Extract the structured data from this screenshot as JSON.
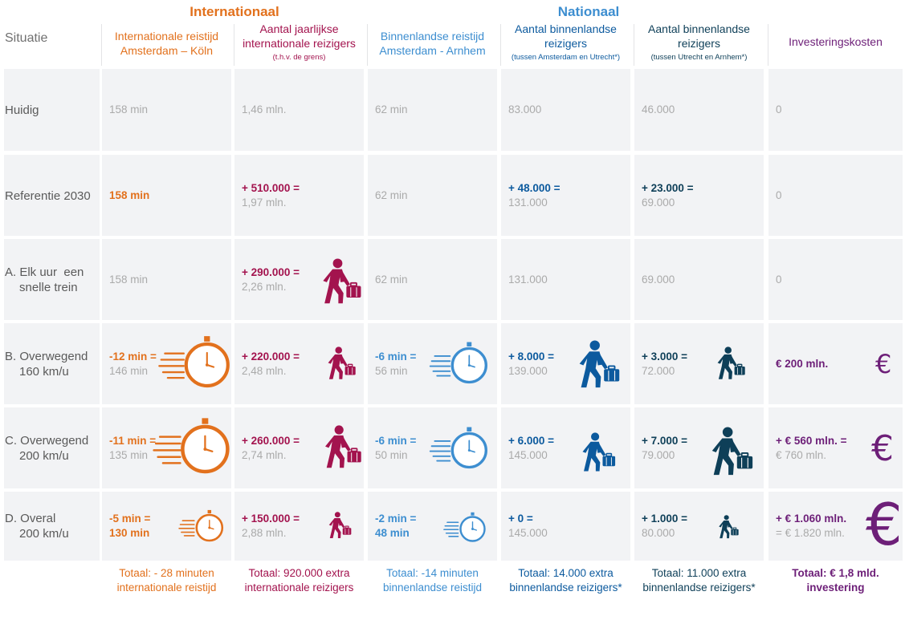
{
  "colors": {
    "orange": "#e2711d",
    "maroon": "#a3134e",
    "lightblue": "#3d8ed0",
    "darkblue": "#0c5a9e",
    "navy": "#0e3f58",
    "purple": "#6d1f78",
    "grey": "#aaaaaa"
  },
  "groups": {
    "international": "Internationaal",
    "national": "Nationaal"
  },
  "situation_header": "Situatie",
  "columns": [
    {
      "title": "Internationale reistijd Amsterdam – Köln",
      "sub": ""
    },
    {
      "title": "Aantal jaarlijkse internationale reizigers",
      "sub": "(t.h.v. de grens)"
    },
    {
      "title": "Binnenlandse reistijd Amsterdam - Arnhem",
      "sub": ""
    },
    {
      "title": "Aantal binnenlandse reizigers",
      "sub": "(tussen Amsterdam en Utrecht*)"
    },
    {
      "title": "Aantal binnenlandse reizigers",
      "sub": "(tussen Utrecht en Arnhem*)"
    },
    {
      "title": "Investeringskosten",
      "sub": ""
    }
  ],
  "rows": [
    {
      "label1": "Huidig",
      "label2": "",
      "cells": [
        [
          "",
          "158 min"
        ],
        [
          "",
          "1,46 mln."
        ],
        [
          "",
          "62 min"
        ],
        [
          "",
          "83.000"
        ],
        [
          "",
          "46.000"
        ],
        [
          "",
          "0"
        ]
      ]
    },
    {
      "label1": "Referentie 2030",
      "label2": "",
      "cells": [
        [
          "158 min",
          ""
        ],
        [
          "+ 510.000 =",
          "1,97 mln."
        ],
        [
          "",
          "62 min"
        ],
        [
          "+ 48.000 =",
          "131.000"
        ],
        [
          "+ 23.000 =",
          "69.000"
        ],
        [
          "",
          "0"
        ]
      ]
    },
    {
      "label1": "A. Elk uur  een",
      "label2": "snelle trein",
      "cells": [
        [
          "",
          "158 min"
        ],
        [
          "+ 290.000 =",
          "2,26 mln."
        ],
        [
          "",
          "62 min"
        ],
        [
          "",
          "131.000"
        ],
        [
          "",
          "69.000"
        ],
        [
          "",
          "0"
        ]
      ]
    },
    {
      "label1": "B. Overwegend",
      "label2": "160 km/u",
      "cells": [
        [
          "-12 min =",
          "146 min"
        ],
        [
          "+ 220.000 =",
          "2,48 mln."
        ],
        [
          "-6 min =",
          "56 min"
        ],
        [
          "+ 8.000 =",
          "139.000"
        ],
        [
          "+ 3.000 =",
          "72.000"
        ],
        [
          "€ 200 mln.",
          ""
        ]
      ]
    },
    {
      "label1": "C. Overwegend",
      "label2": "200 km/u",
      "cells": [
        [
          "-11 min =",
          "135 min"
        ],
        [
          "+ 260.000 =",
          "2,74 mln."
        ],
        [
          "-6 min =",
          "50 min"
        ],
        [
          "+ 6.000 =",
          "145.000"
        ],
        [
          "+ 7.000 =",
          "79.000"
        ],
        [
          "+ € 560 mln. =",
          "€ 760 mln."
        ]
      ]
    },
    {
      "label1": "D. Overal",
      "label2": "200 km/u",
      "cells": [
        [
          "-5 min =",
          "130 min"
        ],
        [
          "+ 150.000 =",
          "2,88 mln."
        ],
        [
          "-2 min =",
          "48 min"
        ],
        [
          "+ 0 =",
          "145.000"
        ],
        [
          "+ 1.000 =",
          "80.000"
        ],
        [
          "+ € 1.060 mln.",
          "= € 1.820 mln."
        ]
      ]
    }
  ],
  "totals": [
    [
      "Totaal: - 28 minuten",
      "internationale reistijd"
    ],
    [
      "Totaal: 920.000 extra",
      "internationale reizigers"
    ],
    [
      "Totaal: -14 minuten",
      "binnenlandse reistijd"
    ],
    [
      "Totaal: 14.000 extra",
      "binnenlandse reizigers*"
    ],
    [
      "Totaal: 11.000 extra",
      "binnenlandse reizigers*"
    ],
    [
      "Totaal: € 1,8 mld.",
      "investering"
    ]
  ],
  "chart_data": {
    "type": "table",
    "columns": [
      "Situatie",
      "Internationale reistijd Amsterdam – Köln",
      "Aantal jaarlijkse internationale reizigers (t.h.v. de grens)",
      "Binnenlandse reistijd Amsterdam - Arnhem",
      "Aantal binnenlandse reizigers (tussen Amsterdam en Utrecht*)",
      "Aantal binnenlandse reizigers (tussen Utrecht en Arnhem*)",
      "Investeringskosten"
    ],
    "rows": [
      [
        "Huidig",
        "158 min",
        "1,46 mln.",
        "62 min",
        "83.000",
        "46.000",
        "0"
      ],
      [
        "Referentie 2030",
        "158 min",
        "+ 510.000 = 1,97 mln.",
        "62 min",
        "+ 48.000 = 131.000",
        "+ 23.000 = 69.000",
        "0"
      ],
      [
        "A. Elk uur een snelle trein",
        "158 min",
        "+ 290.000 = 2,26 mln.",
        "62 min",
        "131.000",
        "69.000",
        "0"
      ],
      [
        "B. Overwegend 160 km/u",
        "-12 min = 146 min",
        "+ 220.000 = 2,48 mln.",
        "-6 min = 56 min",
        "+ 8.000 = 139.000",
        "+ 3.000 = 72.000",
        "€ 200 mln."
      ],
      [
        "C. Overwegend 200 km/u",
        "-11 min = 135 min",
        "+ 260.000 = 2,74 mln.",
        "-6 min = 50 min",
        "+ 6.000 = 145.000",
        "+ 7.000 = 79.000",
        "+ € 560 mln. = € 760 mln."
      ],
      [
        "D. Overal 200 km/u",
        "-5 min = 130 min",
        "+ 150.000 = 2,88 mln.",
        "-2 min = 48 min",
        "+ 0 = 145.000",
        "+ 1.000 = 80.000",
        "+ € 1.060 mln. = € 1.820 mln."
      ]
    ],
    "icons": [
      {
        "row": "A",
        "type": "traveler",
        "column": "international-travelers",
        "magnitude": 290000
      },
      {
        "row": "B",
        "type": "stopwatch",
        "column": "international-time",
        "magnitude": 12
      },
      {
        "row": "B",
        "type": "traveler",
        "column": "international-travelers",
        "magnitude": 220000
      },
      {
        "row": "B",
        "type": "stopwatch",
        "column": "domestic-time",
        "magnitude": 6
      },
      {
        "row": "B",
        "type": "traveler",
        "column": "domestic-ams-utr",
        "magnitude": 8000
      },
      {
        "row": "B",
        "type": "traveler",
        "column": "domestic-utr-arn",
        "magnitude": 3000
      },
      {
        "row": "B",
        "type": "euro",
        "column": "investment",
        "magnitude": 200
      },
      {
        "row": "C",
        "type": "stopwatch",
        "column": "international-time",
        "magnitude": 11
      },
      {
        "row": "C",
        "type": "traveler",
        "column": "international-travelers",
        "magnitude": 260000
      },
      {
        "row": "C",
        "type": "stopwatch",
        "column": "domestic-time",
        "magnitude": 6
      },
      {
        "row": "C",
        "type": "traveler",
        "column": "domestic-ams-utr",
        "magnitude": 6000
      },
      {
        "row": "C",
        "type": "traveler",
        "column": "domestic-utr-arn",
        "magnitude": 7000
      },
      {
        "row": "C",
        "type": "euro",
        "column": "investment",
        "magnitude": 560
      },
      {
        "row": "D",
        "type": "stopwatch",
        "column": "international-time",
        "magnitude": 5
      },
      {
        "row": "D",
        "type": "traveler",
        "column": "international-travelers",
        "magnitude": 150000
      },
      {
        "row": "D",
        "type": "stopwatch",
        "column": "domestic-time",
        "magnitude": 2
      },
      {
        "row": "D",
        "type": "traveler",
        "column": "domestic-utr-arn",
        "magnitude": 1000
      },
      {
        "row": "D",
        "type": "euro",
        "column": "investment",
        "magnitude": 1060
      }
    ]
  }
}
